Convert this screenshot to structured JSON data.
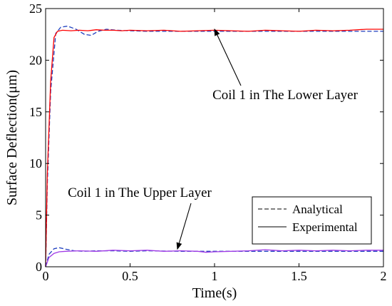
{
  "chart_data": {
    "type": "line",
    "xlabel": "Time(s)",
    "ylabel": "Surface Deflection(μm)",
    "xlim": [
      0,
      2
    ],
    "ylim": [
      0,
      25
    ],
    "xticks": [
      "0",
      "0.5",
      "1",
      "1.5",
      "2"
    ],
    "yticks": [
      "0",
      "5",
      "10",
      "15",
      "20",
      "25"
    ],
    "grid": false,
    "legend": {
      "placement": "lower-right",
      "entries": [
        {
          "label": "Analytical",
          "style": "dashed"
        },
        {
          "label": "Experimental",
          "style": "solid"
        }
      ]
    },
    "annotations": [
      {
        "text": "Coil 1 in The Lower Layer",
        "arrow_to": [
          1.0,
          22.8
        ]
      },
      {
        "text": "Coil 1 in The Upper Layer",
        "arrow_to": [
          0.78,
          1.5
        ]
      }
    ],
    "series": [
      {
        "group": "Coil 1 in The Lower Layer",
        "kind": "analytical",
        "color": "#1f3fbf",
        "dash": "dashed",
        "points": [
          [
            0,
            0
          ],
          [
            0.01,
            8
          ],
          [
            0.03,
            17
          ],
          [
            0.06,
            22.6
          ],
          [
            0.09,
            23.2
          ],
          [
            0.13,
            23.3
          ],
          [
            0.18,
            23.0
          ],
          [
            0.23,
            22.5
          ],
          [
            0.27,
            22.4
          ],
          [
            0.31,
            22.8
          ],
          [
            0.36,
            23.0
          ],
          [
            0.42,
            22.9
          ],
          [
            0.5,
            22.85
          ],
          [
            0.6,
            22.8
          ],
          [
            0.8,
            22.8
          ],
          [
            1.0,
            22.8
          ],
          [
            1.2,
            22.8
          ],
          [
            1.4,
            22.8
          ],
          [
            1.6,
            22.8
          ],
          [
            1.8,
            22.8
          ],
          [
            2.0,
            22.8
          ]
        ]
      },
      {
        "group": "Coil 1 in The Lower Layer",
        "kind": "experimental",
        "color": "#ff0000",
        "dash": "solid",
        "points": [
          [
            0,
            0
          ],
          [
            0.01,
            9
          ],
          [
            0.03,
            18
          ],
          [
            0.05,
            22.2
          ],
          [
            0.07,
            22.8
          ],
          [
            0.1,
            22.9
          ],
          [
            0.15,
            22.85
          ],
          [
            0.2,
            22.9
          ],
          [
            0.25,
            22.85
          ],
          [
            0.3,
            22.95
          ],
          [
            0.35,
            22.9
          ],
          [
            0.4,
            22.9
          ],
          [
            0.45,
            22.85
          ],
          [
            0.5,
            22.9
          ],
          [
            0.6,
            22.85
          ],
          [
            0.7,
            22.9
          ],
          [
            0.8,
            22.8
          ],
          [
            0.9,
            22.85
          ],
          [
            1.0,
            22.9
          ],
          [
            1.1,
            22.85
          ],
          [
            1.2,
            22.8
          ],
          [
            1.3,
            22.9
          ],
          [
            1.4,
            22.85
          ],
          [
            1.5,
            22.8
          ],
          [
            1.6,
            22.9
          ],
          [
            1.7,
            22.85
          ],
          [
            1.8,
            22.9
          ],
          [
            1.9,
            23.0
          ],
          [
            2.0,
            23.0
          ]
        ]
      },
      {
        "group": "Coil 1 in The Upper Layer",
        "kind": "analytical",
        "color": "#1f3fbf",
        "dash": "dashed",
        "points": [
          [
            0,
            0
          ],
          [
            0.02,
            1.2
          ],
          [
            0.05,
            1.75
          ],
          [
            0.08,
            1.85
          ],
          [
            0.12,
            1.7
          ],
          [
            0.17,
            1.55
          ],
          [
            0.22,
            1.5
          ],
          [
            0.3,
            1.55
          ],
          [
            0.4,
            1.55
          ],
          [
            0.5,
            1.5
          ],
          [
            0.6,
            1.55
          ],
          [
            0.8,
            1.5
          ],
          [
            1.0,
            1.5
          ],
          [
            1.2,
            1.5
          ],
          [
            1.4,
            1.5
          ],
          [
            1.6,
            1.5
          ],
          [
            1.8,
            1.5
          ],
          [
            2.0,
            1.5
          ]
        ]
      },
      {
        "group": "Coil 1 in The Upper Layer",
        "kind": "experimental",
        "color": "#a03ae6",
        "dash": "solid",
        "points": [
          [
            0,
            0
          ],
          [
            0.02,
            0.9
          ],
          [
            0.05,
            1.3
          ],
          [
            0.08,
            1.45
          ],
          [
            0.12,
            1.5
          ],
          [
            0.2,
            1.55
          ],
          [
            0.3,
            1.5
          ],
          [
            0.4,
            1.6
          ],
          [
            0.5,
            1.55
          ],
          [
            0.6,
            1.6
          ],
          [
            0.7,
            1.5
          ],
          [
            0.8,
            1.55
          ],
          [
            0.9,
            1.5
          ],
          [
            0.95,
            1.4
          ],
          [
            1.0,
            1.45
          ],
          [
            1.1,
            1.5
          ],
          [
            1.2,
            1.55
          ],
          [
            1.3,
            1.65
          ],
          [
            1.4,
            1.55
          ],
          [
            1.5,
            1.6
          ],
          [
            1.6,
            1.55
          ],
          [
            1.7,
            1.6
          ],
          [
            1.8,
            1.55
          ],
          [
            1.9,
            1.6
          ],
          [
            2.0,
            1.6
          ]
        ]
      }
    ]
  }
}
